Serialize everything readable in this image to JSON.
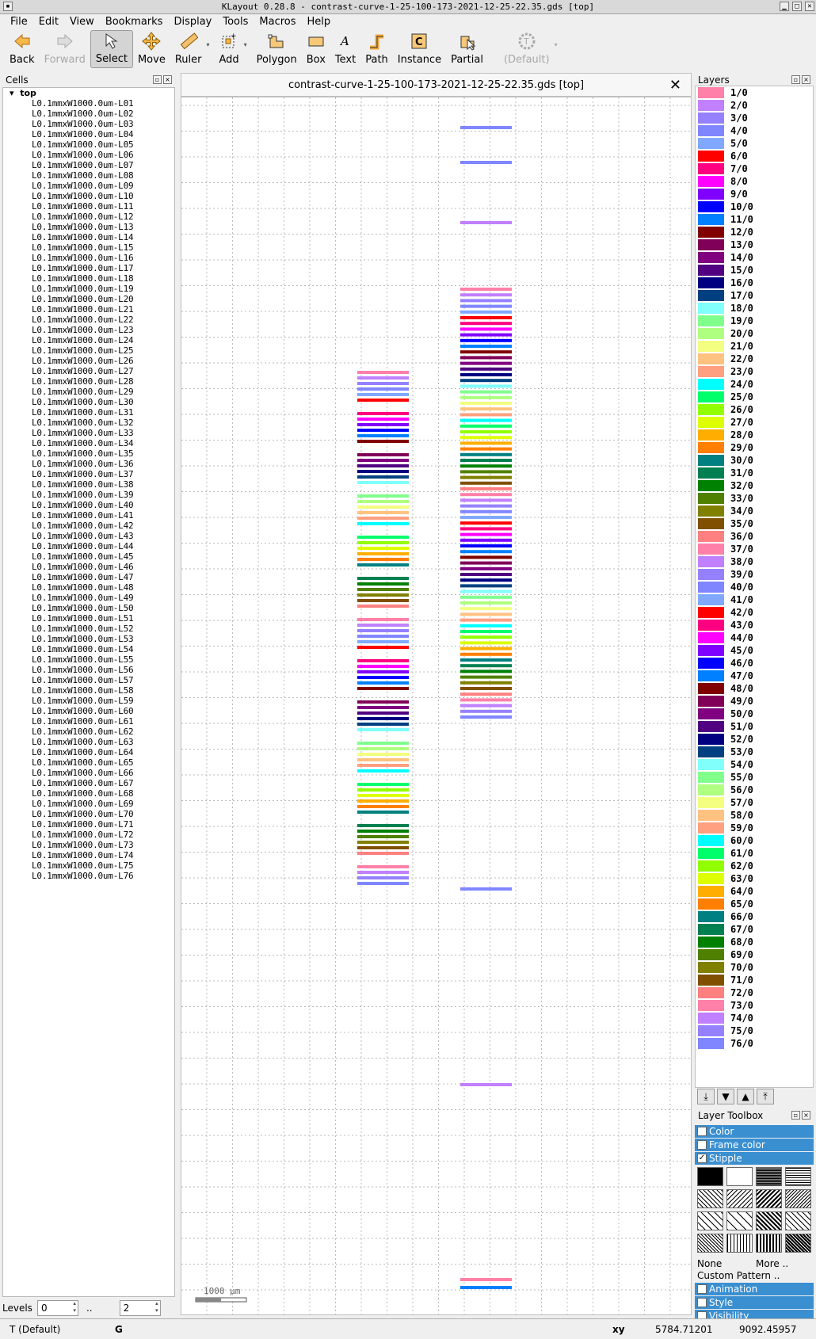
{
  "window": {
    "title": "KLayout 0.28.8 - contrast-curve-1-25-100-173-2021-12-25-22.35.gds [top]"
  },
  "menu": [
    "File",
    "Edit",
    "View",
    "Bookmarks",
    "Display",
    "Tools",
    "Macros",
    "Help"
  ],
  "toolbar": [
    {
      "label": "Back",
      "icon": "back-arrow-icon",
      "state": "normal"
    },
    {
      "label": "Forward",
      "icon": "forward-arrow-icon",
      "state": "disabled"
    },
    {
      "label": "Select",
      "icon": "select-cursor-icon",
      "state": "active"
    },
    {
      "label": "Move",
      "icon": "move-cross-icon",
      "state": "normal"
    },
    {
      "label": "Ruler",
      "icon": "ruler-icon",
      "state": "normal"
    },
    {
      "label": "Add",
      "icon": "add-instance-icon",
      "state": "normal"
    },
    {
      "label": "Polygon",
      "icon": "polygon-icon",
      "state": "normal"
    },
    {
      "label": "Box",
      "icon": "box-icon",
      "state": "normal"
    },
    {
      "label": "Text",
      "icon": "text-icon",
      "state": "normal"
    },
    {
      "label": "Path",
      "icon": "path-icon",
      "state": "normal"
    },
    {
      "label": "Instance",
      "icon": "instance-icon",
      "state": "normal"
    },
    {
      "label": "Partial",
      "icon": "partial-icon",
      "state": "normal"
    },
    {
      "label": "(Default)",
      "icon": "tech-gear-icon",
      "state": "disabled"
    }
  ],
  "cells": {
    "title": "Cells",
    "root": "top",
    "prefix": "L0.1mmxW1000.0um-L",
    "count": 76
  },
  "levels": {
    "label": "Levels",
    "from": "0",
    "sep": "..",
    "to": "2"
  },
  "canvas": {
    "tab_title": "contrast-curve-1-25-100-173-2021-12-25-22.35.gds [top]",
    "scale_label": "1000 µm"
  },
  "layers": {
    "title": "Layers",
    "items": [
      {
        "name": "1/0",
        "color": "#ff80a8"
      },
      {
        "name": "2/0",
        "color": "#c080ff"
      },
      {
        "name": "3/0",
        "color": "#9580ff"
      },
      {
        "name": "4/0",
        "color": "#8086ff"
      },
      {
        "name": "5/0",
        "color": "#80a8ff"
      },
      {
        "name": "6/0",
        "color": "#ff0000"
      },
      {
        "name": "7/0",
        "color": "#ff0080"
      },
      {
        "name": "8/0",
        "color": "#ff00ff"
      },
      {
        "name": "9/0",
        "color": "#8000ff"
      },
      {
        "name": "10/0",
        "color": "#0000ff"
      },
      {
        "name": "11/0",
        "color": "#0080ff"
      },
      {
        "name": "12/0",
        "color": "#800000"
      },
      {
        "name": "13/0",
        "color": "#800057"
      },
      {
        "name": "14/0",
        "color": "#800080"
      },
      {
        "name": "15/0",
        "color": "#500080"
      },
      {
        "name": "16/0",
        "color": "#000080"
      },
      {
        "name": "17/0",
        "color": "#004080"
      },
      {
        "name": "18/0",
        "color": "#80fffb"
      },
      {
        "name": "19/0",
        "color": "#80ff8d"
      },
      {
        "name": "20/0",
        "color": "#afff80"
      },
      {
        "name": "21/0",
        "color": "#f3ff80"
      },
      {
        "name": "22/0",
        "color": "#ffc280"
      },
      {
        "name": "23/0",
        "color": "#ffa080"
      },
      {
        "name": "24/0",
        "color": "#00ffff"
      },
      {
        "name": "25/0",
        "color": "#01ff6b"
      },
      {
        "name": "26/0",
        "color": "#91ff00"
      },
      {
        "name": "27/0",
        "color": "#ddff00"
      },
      {
        "name": "28/0",
        "color": "#ffae00"
      },
      {
        "name": "29/0",
        "color": "#ff8000"
      },
      {
        "name": "30/0",
        "color": "#008080"
      },
      {
        "name": "31/0",
        "color": "#008050"
      },
      {
        "name": "32/0",
        "color": "#008000"
      },
      {
        "name": "33/0",
        "color": "#508000"
      },
      {
        "name": "34/0",
        "color": "#808000"
      },
      {
        "name": "35/0",
        "color": "#805000"
      },
      {
        "name": "36/0",
        "color": "#ff8080"
      },
      {
        "name": "37/0",
        "color": "#ff80a8"
      },
      {
        "name": "38/0",
        "color": "#c080ff"
      },
      {
        "name": "39/0",
        "color": "#9580ff"
      },
      {
        "name": "40/0",
        "color": "#8086ff"
      },
      {
        "name": "41/0",
        "color": "#80a8ff"
      },
      {
        "name": "42/0",
        "color": "#ff0000"
      },
      {
        "name": "43/0",
        "color": "#ff0080"
      },
      {
        "name": "44/0",
        "color": "#ff00ff"
      },
      {
        "name": "45/0",
        "color": "#8000ff"
      },
      {
        "name": "46/0",
        "color": "#0000ff"
      },
      {
        "name": "47/0",
        "color": "#0080ff"
      },
      {
        "name": "48/0",
        "color": "#800000"
      },
      {
        "name": "49/0",
        "color": "#800057"
      },
      {
        "name": "50/0",
        "color": "#800080"
      },
      {
        "name": "51/0",
        "color": "#500080"
      },
      {
        "name": "52/0",
        "color": "#000080"
      },
      {
        "name": "53/0",
        "color": "#004080"
      },
      {
        "name": "54/0",
        "color": "#80fffb"
      },
      {
        "name": "55/0",
        "color": "#80ff8d"
      },
      {
        "name": "56/0",
        "color": "#afff80"
      },
      {
        "name": "57/0",
        "color": "#f3ff80"
      },
      {
        "name": "58/0",
        "color": "#ffc280"
      },
      {
        "name": "59/0",
        "color": "#ffa080"
      },
      {
        "name": "60/0",
        "color": "#00ffff"
      },
      {
        "name": "61/0",
        "color": "#01ff6b"
      },
      {
        "name": "62/0",
        "color": "#91ff00"
      },
      {
        "name": "63/0",
        "color": "#ddff00"
      },
      {
        "name": "64/0",
        "color": "#ffae00"
      },
      {
        "name": "65/0",
        "color": "#ff8000"
      },
      {
        "name": "66/0",
        "color": "#008080"
      },
      {
        "name": "67/0",
        "color": "#008050"
      },
      {
        "name": "68/0",
        "color": "#008000"
      },
      {
        "name": "69/0",
        "color": "#508000"
      },
      {
        "name": "70/0",
        "color": "#808000"
      },
      {
        "name": "71/0",
        "color": "#805000"
      },
      {
        "name": "72/0",
        "color": "#ff8080"
      },
      {
        "name": "73/0",
        "color": "#ff80a8"
      },
      {
        "name": "74/0",
        "color": "#c080ff"
      },
      {
        "name": "75/0",
        "color": "#9580ff"
      },
      {
        "name": "76/0",
        "color": "#8086ff"
      }
    ]
  },
  "toolbox": {
    "title": "Layer Toolbox",
    "color": "Color",
    "frame_color": "Frame color",
    "stipple": "Stipple",
    "none": "None",
    "more": "More ..",
    "custom_pattern": "Custom Pattern ..",
    "animation": "Animation",
    "style": "Style",
    "visibility": "Visibility"
  },
  "status": {
    "tech": "T  (Default)",
    "grid": "G",
    "coord_label": "xy",
    "x": "5784.71201",
    "y": "9092.45957"
  }
}
